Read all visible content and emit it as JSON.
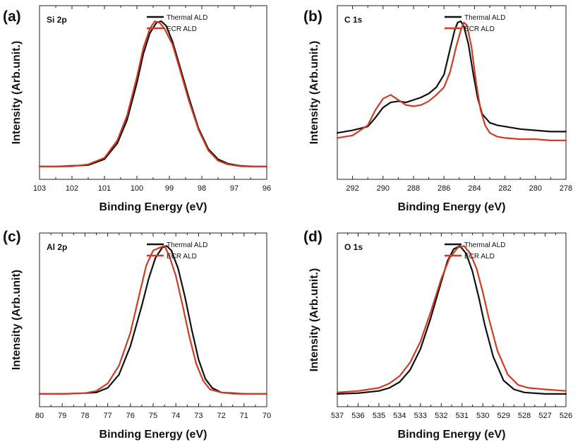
{
  "colors": {
    "thermal": "#111111",
    "ecr": "#d03a26"
  },
  "chart_data": [
    {
      "type": "line",
      "panel_letter": "(a)",
      "panel_name": "Si 2p",
      "xlabel": "Binding Energy (eV)",
      "ylabel": "Intensity (Arb.unit.)",
      "xlim": [
        103,
        96
      ],
      "ylim": [
        0,
        1
      ],
      "xticks": [
        103,
        102,
        101,
        100,
        99,
        98,
        97,
        96
      ],
      "y_ticks_shown": false,
      "legend": "top-right",
      "series": [
        {
          "name": "Thermal ALD",
          "color": "#111111",
          "x": [
            103,
            102.5,
            102,
            101.5,
            101,
            100.6,
            100.3,
            100,
            99.8,
            99.6,
            99.4,
            99.25,
            99.1,
            98.9,
            98.7,
            98.4,
            98.1,
            97.8,
            97.5,
            97.2,
            96.8,
            96.4,
            96
          ],
          "y": [
            0.01,
            0.01,
            0.015,
            0.02,
            0.06,
            0.17,
            0.33,
            0.58,
            0.78,
            0.92,
            0.99,
            1.0,
            0.97,
            0.86,
            0.71,
            0.48,
            0.27,
            0.13,
            0.06,
            0.03,
            0.015,
            0.01,
            0.01
          ]
        },
        {
          "name": "ECR ALD",
          "color": "#d03a26",
          "x": [
            103,
            102.5,
            102,
            101.5,
            101,
            100.6,
            100.3,
            100,
            99.8,
            99.6,
            99.45,
            99.3,
            99.15,
            98.9,
            98.7,
            98.4,
            98.1,
            97.8,
            97.5,
            97.2,
            96.8,
            96.4,
            96
          ],
          "y": [
            0.01,
            0.01,
            0.012,
            0.025,
            0.07,
            0.19,
            0.36,
            0.62,
            0.82,
            0.95,
            1.0,
            0.99,
            0.95,
            0.84,
            0.69,
            0.46,
            0.26,
            0.12,
            0.05,
            0.025,
            0.012,
            0.01,
            0.01
          ]
        }
      ]
    },
    {
      "type": "line",
      "panel_letter": "(b)",
      "panel_name": "C 1s",
      "xlabel": "Binding Energy (eV)",
      "ylabel": "Intensity (Arb.unit.)",
      "xlim": [
        293,
        278
      ],
      "ylim": [
        0,
        1
      ],
      "xticks": [
        292,
        290,
        288,
        286,
        284,
        282,
        280,
        278
      ],
      "y_ticks_shown": false,
      "legend": "top-right",
      "series": [
        {
          "name": "Thermal ALD",
          "color": "#111111",
          "x": [
            293,
            292,
            291,
            290.5,
            290,
            289.5,
            289,
            288.5,
            288,
            287.5,
            287,
            286.5,
            286,
            285.6,
            285.3,
            285.1,
            284.9,
            284.7,
            284.4,
            284.1,
            283.8,
            283.5,
            283,
            282.5,
            282,
            281,
            280,
            279,
            278
          ],
          "y": [
            0.12,
            0.14,
            0.17,
            0.24,
            0.32,
            0.36,
            0.37,
            0.36,
            0.38,
            0.4,
            0.43,
            0.48,
            0.58,
            0.78,
            0.93,
            0.99,
            1.0,
            0.96,
            0.82,
            0.6,
            0.4,
            0.27,
            0.2,
            0.18,
            0.17,
            0.15,
            0.14,
            0.13,
            0.13
          ]
        },
        {
          "name": "ECR ALD",
          "color": "#d03a26",
          "x": [
            293,
            292,
            291,
            290.5,
            290,
            289.5,
            289,
            288.5,
            288,
            287.5,
            287,
            286.5,
            286,
            285.6,
            285.2,
            284.9,
            284.7,
            284.5,
            284.2,
            283.9,
            283.6,
            283.3,
            283,
            282.5,
            282,
            281,
            280,
            279,
            278
          ],
          "y": [
            0.08,
            0.1,
            0.18,
            0.3,
            0.39,
            0.42,
            0.38,
            0.34,
            0.33,
            0.34,
            0.37,
            0.42,
            0.48,
            0.6,
            0.8,
            0.93,
            0.99,
            0.97,
            0.8,
            0.52,
            0.3,
            0.18,
            0.12,
            0.09,
            0.08,
            0.07,
            0.07,
            0.06,
            0.06
          ]
        }
      ]
    },
    {
      "type": "line",
      "panel_letter": "(c)",
      "panel_name": "Al 2p",
      "xlabel": "Binding Energy (eV)",
      "ylabel": "Intensity (Arb.unit)",
      "xlim": [
        80,
        70
      ],
      "ylim": [
        0,
        1
      ],
      "xticks": [
        80,
        79,
        78,
        77,
        76,
        75,
        74,
        73,
        72,
        71,
        70
      ],
      "y_ticks_shown": false,
      "legend": "top-right",
      "series": [
        {
          "name": "Thermal ALD",
          "color": "#111111",
          "x": [
            80,
            79,
            78,
            77.5,
            77,
            76.5,
            76,
            75.5,
            75.2,
            74.9,
            74.6,
            74.4,
            74.2,
            73.9,
            73.6,
            73.3,
            73,
            72.7,
            72.4,
            72,
            71.5,
            71,
            70
          ],
          "y": [
            0.01,
            0.01,
            0.015,
            0.02,
            0.05,
            0.14,
            0.33,
            0.6,
            0.78,
            0.92,
            0.99,
            1.0,
            0.97,
            0.85,
            0.66,
            0.44,
            0.24,
            0.11,
            0.05,
            0.02,
            0.015,
            0.01,
            0.01
          ]
        },
        {
          "name": "ECR ALD",
          "color": "#d03a26",
          "x": [
            80,
            79,
            78,
            77.5,
            77,
            76.5,
            76,
            75.6,
            75.3,
            75,
            74.7,
            74.5,
            74.3,
            74,
            73.7,
            73.4,
            73.1,
            72.8,
            72.5,
            72,
            71.5,
            71,
            70
          ],
          "y": [
            0.01,
            0.01,
            0.015,
            0.03,
            0.08,
            0.2,
            0.42,
            0.68,
            0.87,
            0.97,
            0.99,
            1.0,
            0.94,
            0.8,
            0.6,
            0.39,
            0.21,
            0.1,
            0.04,
            0.02,
            0.012,
            0.01,
            0.01
          ]
        }
      ]
    },
    {
      "type": "line",
      "panel_letter": "(d)",
      "panel_name": "O 1s",
      "xlabel": "Binding Energy (eV)",
      "ylabel": "Intensity (Arb.unit.)",
      "xlim": [
        537,
        526
      ],
      "ylim": [
        0,
        1
      ],
      "xticks": [
        537,
        536,
        535,
        534,
        533,
        532,
        531,
        530,
        529,
        528,
        527,
        526
      ],
      "y_ticks_shown": false,
      "legend": "top-right",
      "series": [
        {
          "name": "Thermal ALD",
          "color": "#111111",
          "x": [
            537,
            536,
            535,
            534.5,
            534,
            533.5,
            533,
            532.5,
            532,
            531.7,
            531.4,
            531.1,
            530.8,
            530.5,
            530.2,
            529.9,
            529.5,
            529,
            528.5,
            528,
            527,
            526
          ],
          "y": [
            0.01,
            0.015,
            0.03,
            0.05,
            0.09,
            0.17,
            0.31,
            0.52,
            0.76,
            0.9,
            0.98,
            1.0,
            0.95,
            0.83,
            0.66,
            0.47,
            0.26,
            0.1,
            0.04,
            0.02,
            0.01,
            0.01
          ]
        },
        {
          "name": "ECR ALD",
          "color": "#d03a26",
          "x": [
            537,
            536,
            535,
            534.5,
            534,
            533.5,
            533,
            532.5,
            532,
            531.6,
            531.2,
            530.9,
            530.6,
            530.3,
            530,
            529.7,
            529.3,
            528.8,
            528.3,
            527.8,
            527,
            526
          ],
          "y": [
            0.02,
            0.03,
            0.05,
            0.08,
            0.13,
            0.22,
            0.36,
            0.56,
            0.78,
            0.92,
            0.99,
            1.0,
            0.95,
            0.85,
            0.69,
            0.51,
            0.3,
            0.14,
            0.07,
            0.05,
            0.04,
            0.03
          ]
        }
      ]
    }
  ]
}
